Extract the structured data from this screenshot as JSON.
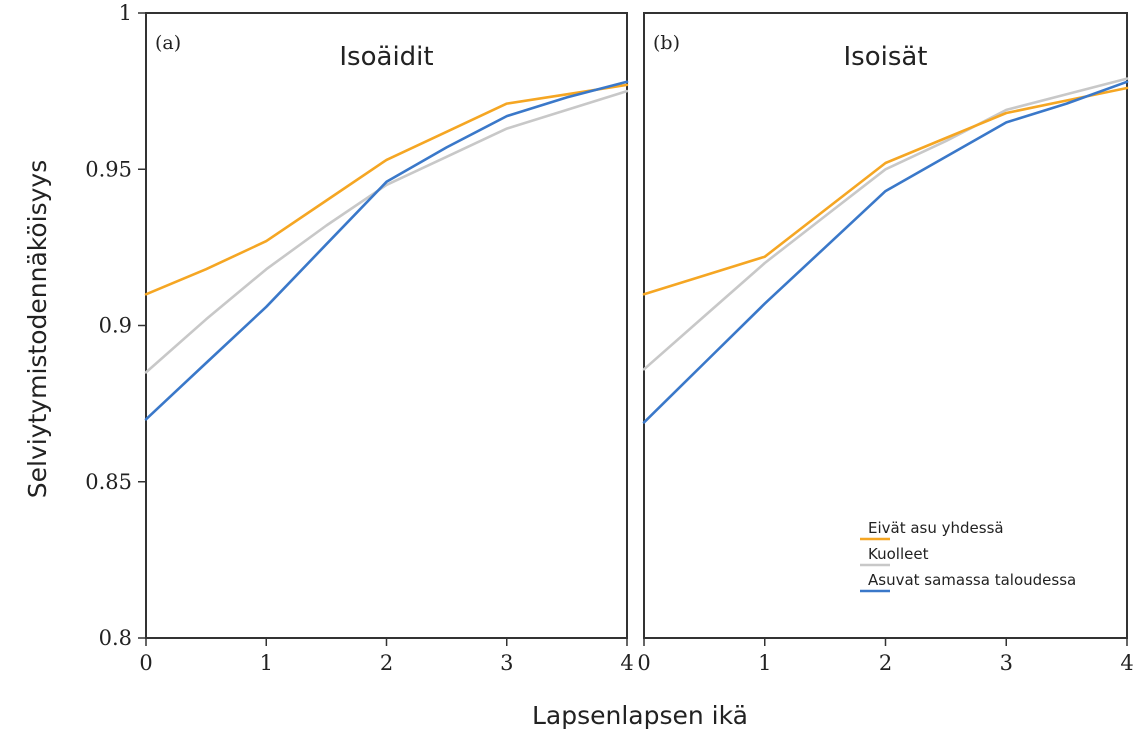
{
  "chart_data": {
    "type": "line",
    "ylabel": "Selviytymistodennäköisyys",
    "xlabel": "Lapsenlapsen ikä",
    "ylim": [
      0.8,
      1.0
    ],
    "xlim": [
      0,
      4
    ],
    "yticks": [
      "0.8",
      "0.85",
      "0.9",
      "0.95",
      "1"
    ],
    "xticks": [
      "0",
      "1",
      "2",
      "3",
      "4"
    ],
    "grid": false,
    "legend_position": "bottom-right",
    "colors": {
      "Eivät asu yhdessä": "#f5a623",
      "Kuolleet": "#c8c8c8",
      "Asuvat samassa taloudessa": "#3a78c9"
    },
    "legend": [
      "Eivät asu yhdessä",
      "Kuolleet",
      "Asuvat samassa taloudessa"
    ],
    "panels": [
      {
        "tag": "(a)",
        "title": "Isoäidit",
        "x": [
          0,
          0.5,
          1,
          1.5,
          2,
          2.5,
          3,
          3.5,
          4
        ],
        "series": [
          {
            "name": "Eivät asu yhdessä",
            "values": [
              0.91,
              0.918,
              0.927,
              0.94,
              0.953,
              0.962,
              0.971,
              0.974,
              0.977
            ]
          },
          {
            "name": "Kuolleet",
            "values": [
              0.885,
              0.902,
              0.918,
              0.932,
              0.945,
              0.954,
              0.963,
              0.969,
              0.975
            ]
          },
          {
            "name": "Asuvat samassa taloudessa",
            "values": [
              0.87,
              0.888,
              0.906,
              0.926,
              0.946,
              0.957,
              0.967,
              0.973,
              0.978
            ]
          }
        ]
      },
      {
        "tag": "(b)",
        "title": "Isoisät",
        "x": [
          0,
          0.5,
          1,
          1.5,
          2,
          2.5,
          3,
          3.5,
          4
        ],
        "series": [
          {
            "name": "Eivät asu yhdessä",
            "values": [
              0.91,
              0.916,
              0.922,
              0.937,
              0.952,
              0.96,
              0.968,
              0.972,
              0.976
            ]
          },
          {
            "name": "Kuolleet",
            "values": [
              0.886,
              0.903,
              0.92,
              0.935,
              0.95,
              0.959,
              0.969,
              0.974,
              0.979
            ]
          },
          {
            "name": "Asuvat samassa taloudessa",
            "values": [
              0.869,
              0.888,
              0.907,
              0.925,
              0.943,
              0.954,
              0.965,
              0.971,
              0.978
            ]
          }
        ]
      }
    ]
  }
}
